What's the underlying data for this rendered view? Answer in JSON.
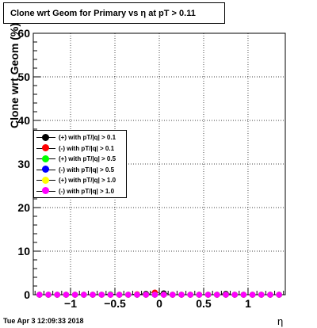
{
  "title": "Clone wrt Geom for Primary vs    η at pT > 0.11",
  "timestamp": "Tue Apr  3 12:09:33 2018",
  "chart_data": {
    "type": "scatter",
    "xlabel": "η",
    "ylabel": "Clone wrt Geom (%)",
    "xlim": [
      -1.42,
      1.42
    ],
    "ylim": [
      0,
      60
    ],
    "xticks": [
      -1,
      -0.5,
      0,
      0.5,
      1
    ],
    "xtick_labels": [
      "−1",
      "−0.5",
      "0",
      "0.5",
      "1"
    ],
    "yticks": [
      0,
      10,
      20,
      30,
      40,
      50,
      60
    ],
    "ytick_labels": [
      "0",
      "10",
      "20",
      "30",
      "40",
      "50",
      "60"
    ],
    "grid": true,
    "legend_position": "middle-left",
    "x": [
      -1.35,
      -1.25,
      -1.15,
      -1.05,
      -0.95,
      -0.85,
      -0.75,
      -0.65,
      -0.55,
      -0.45,
      -0.35,
      -0.25,
      -0.15,
      -0.05,
      0.05,
      0.15,
      0.25,
      0.35,
      0.45,
      0.55,
      0.65,
      0.75,
      0.85,
      0.95,
      1.05,
      1.15,
      1.25,
      1.35
    ],
    "series": [
      {
        "name": "(+) with pT/|q| > 0.1",
        "color": "#000000",
        "values": [
          0,
          0,
          0,
          0,
          0,
          0,
          0,
          0,
          0,
          0,
          0,
          0,
          0.2,
          0,
          0.3,
          0,
          0,
          0,
          0,
          0,
          0,
          0.2,
          0,
          0,
          0,
          0,
          0,
          0
        ]
      },
      {
        "name": "(-) with pT/|q| > 0.1",
        "color": "#ff0000",
        "values": [
          0,
          0,
          0,
          0,
          0,
          0,
          0,
          0,
          0,
          0,
          0,
          0.1,
          0,
          0.5,
          0,
          0,
          0,
          0,
          0,
          0,
          0,
          0,
          0,
          0,
          0,
          0,
          0,
          0
        ]
      },
      {
        "name": "(+) with pT/|q| > 0.5",
        "color": "#00ff00",
        "values": [
          0,
          0,
          0,
          0,
          0,
          0,
          0,
          0,
          0.1,
          0,
          0,
          0,
          0,
          0,
          0,
          0,
          0,
          0,
          0,
          0,
          0,
          0,
          0,
          0,
          0,
          0,
          0,
          0
        ]
      },
      {
        "name": "(-) with pT/|q| > 0.5",
        "color": "#0000ff",
        "values": [
          0,
          0,
          0,
          0,
          0,
          0,
          0,
          0,
          0,
          0,
          0,
          0,
          0,
          0,
          0,
          0,
          0,
          0,
          0,
          0,
          0,
          0,
          0,
          0,
          0,
          0,
          0,
          0
        ]
      },
      {
        "name": "(+) with pT/|q| > 1.0",
        "color": "#ffff00",
        "values": [
          0,
          0,
          0,
          0,
          0,
          0,
          0,
          0,
          0,
          0,
          0,
          0,
          0,
          0,
          0,
          0,
          0,
          0,
          0,
          0,
          0,
          0,
          0,
          0,
          0,
          0,
          0,
          0
        ]
      },
      {
        "name": "(-) with pT/|q| > 1.0",
        "color": "#ff00ff",
        "values": [
          0,
          0,
          0,
          0,
          0,
          0,
          0,
          0,
          0,
          0,
          0,
          0,
          0,
          0,
          0,
          0,
          0,
          0,
          0,
          0,
          0,
          0,
          0,
          0,
          0,
          0,
          0,
          0
        ]
      }
    ]
  }
}
